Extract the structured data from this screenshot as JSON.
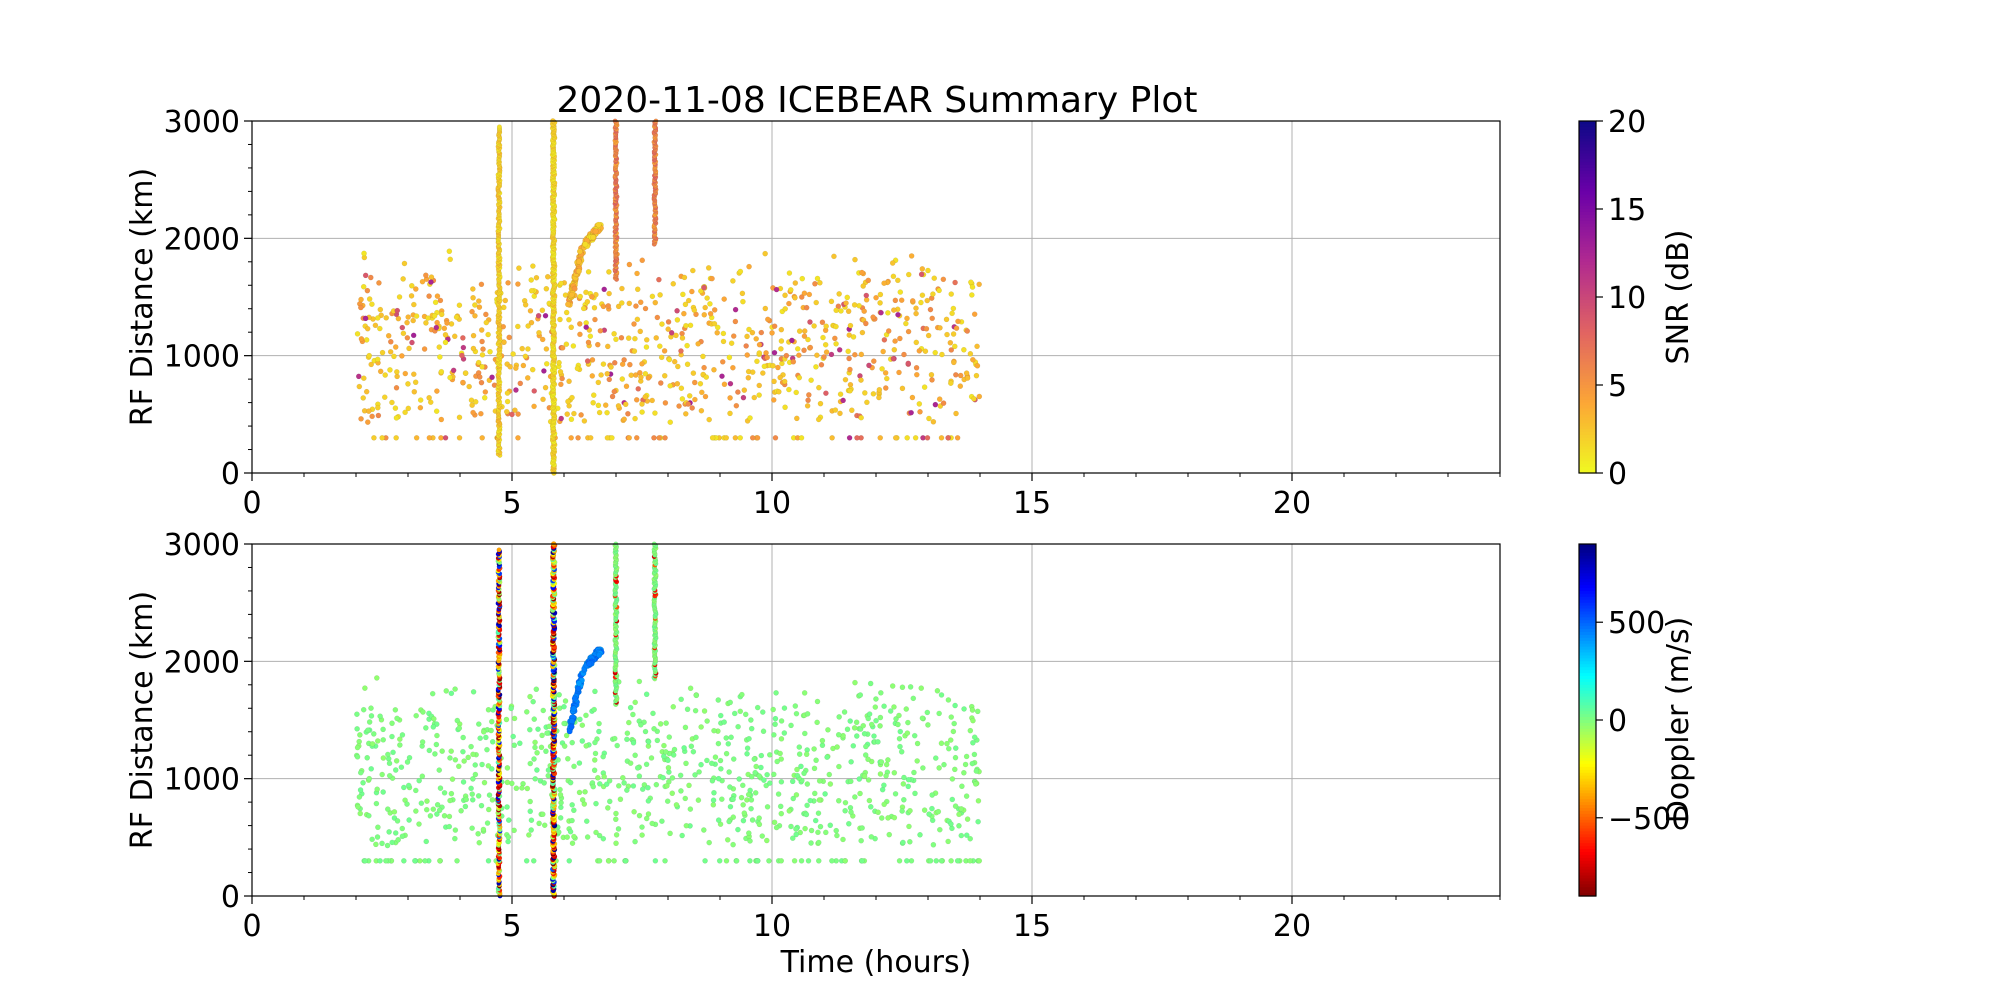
{
  "figure": {
    "title": "2020-11-08 ICEBEAR Summary Plot"
  },
  "chart_data": [
    {
      "type": "scatter",
      "panel": "top",
      "xlabel": "",
      "ylabel": "RF Distance (km)",
      "xlim": [
        0,
        24
      ],
      "ylim": [
        0,
        3000
      ],
      "xticks": [
        0,
        5,
        10,
        15,
        20
      ],
      "yticks": [
        0,
        1000,
        2000,
        3000
      ],
      "grid": true,
      "colorbar": {
        "label": "SNR (dB)",
        "range": [
          0,
          20
        ],
        "ticks": [
          0,
          5,
          10,
          15,
          20
        ],
        "colormap": "plasma_r",
        "stops": [
          "#f0f921",
          "#fca636",
          "#e16462",
          "#b12a90",
          "#6a00a8",
          "#0d0887"
        ]
      },
      "scatter_region": {
        "x": [
          2,
          14
        ],
        "y": [
          300,
          1900
        ],
        "typical_value": 3
      },
      "streaks": [
        {
          "x": 4.75,
          "y": [
            150,
            2950
          ],
          "value": 1
        },
        {
          "x": 5.8,
          "y": [
            0,
            3000
          ],
          "value": 0.5
        },
        {
          "x": 7.0,
          "y": [
            1650,
            3000
          ],
          "value": 4
        },
        {
          "x": 7.75,
          "y": [
            1950,
            3000
          ],
          "value": 4
        }
      ],
      "clusters": [
        {
          "x": [
            6.1,
            6.35
          ],
          "y": [
            1450,
            1900
          ],
          "value": 2
        },
        {
          "x": [
            6.4,
            6.7
          ],
          "y": [
            1950,
            2100
          ],
          "value": 1
        }
      ]
    },
    {
      "type": "scatter",
      "panel": "bottom",
      "xlabel": "Time (hours)",
      "ylabel": "RF Distance (km)",
      "xlim": [
        0,
        24
      ],
      "ylim": [
        0,
        3000
      ],
      "xticks": [
        0,
        5,
        10,
        15,
        20
      ],
      "yticks": [
        0,
        1000,
        2000,
        3000
      ],
      "grid": true,
      "colorbar": {
        "label": "Doppler (m/s)",
        "range": [
          -900,
          900
        ],
        "ticks": [
          -500,
          0,
          500
        ],
        "tick_labels": [
          "−500",
          "0",
          "500"
        ],
        "colormap": "jet_r",
        "stops": [
          "#7f0000",
          "#ff0000",
          "#ff8000",
          "#ffff00",
          "#80ff80",
          "#00ffff",
          "#0080ff",
          "#0000ff",
          "#00007f"
        ]
      },
      "scatter_region": {
        "x": [
          2,
          14
        ],
        "y": [
          300,
          1900
        ],
        "typical_value": 0
      },
      "streaks": [
        {
          "x": 4.75,
          "y": [
            0,
            2950
          ],
          "value": "mixed"
        },
        {
          "x": 5.8,
          "y": [
            0,
            3000
          ],
          "value": "mixed"
        },
        {
          "x": 7.0,
          "y": [
            1650,
            3000
          ],
          "value": 0
        },
        {
          "x": 7.75,
          "y": [
            1850,
            3000
          ],
          "value": 0
        }
      ],
      "clusters": [
        {
          "x": [
            6.1,
            6.35
          ],
          "y": [
            1400,
            1900
          ],
          "value": 450
        },
        {
          "x": [
            6.4,
            6.7
          ],
          "y": [
            1950,
            2100
          ],
          "value": 450
        }
      ]
    }
  ]
}
